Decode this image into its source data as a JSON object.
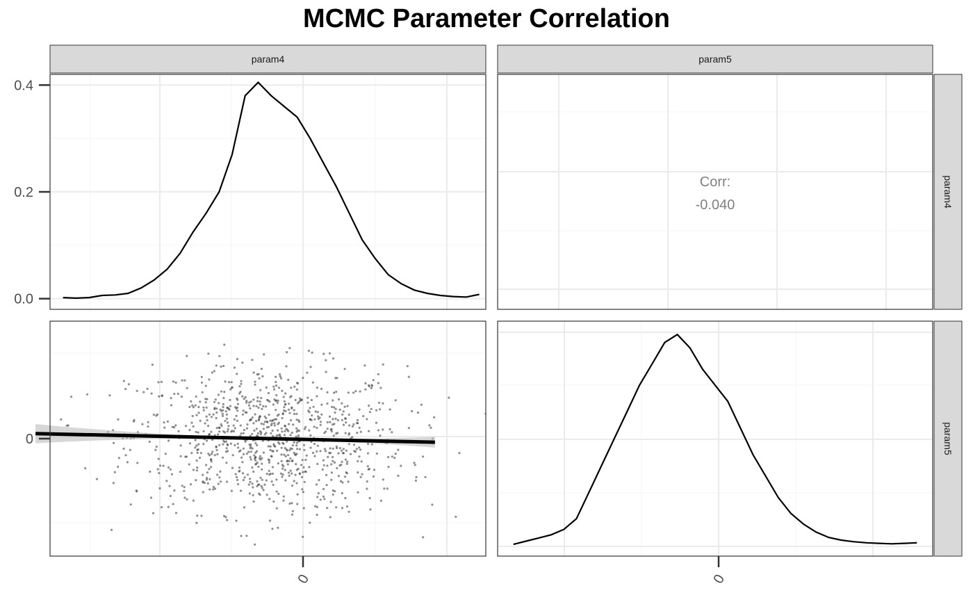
{
  "title": "MCMC Parameter Correlation",
  "chart_data": {
    "type": "pairs",
    "title": "MCMC Parameter Correlation",
    "variables": [
      "param4",
      "param5"
    ],
    "grid": true,
    "colors": {
      "strip": "#d9d9d9",
      "line": "#000000",
      "points": "#333333",
      "ribbon": "#bdbdbd",
      "corr_text": "#7f7f7f"
    },
    "panels": [
      {
        "position": "param4-diagonal",
        "type": "line",
        "name": "density param4",
        "ylim": [
          -0.02,
          0.42
        ],
        "xlim": [
          -3.0,
          3.0
        ],
        "yticks": [
          0.0,
          0.2,
          0.4
        ],
        "ytick_labels": [
          "0.0",
          "0.2",
          "0.4"
        ],
        "x": [
          -3.2,
          -3.0,
          -2.8,
          -2.6,
          -2.4,
          -2.2,
          -2.0,
          -1.8,
          -1.6,
          -1.4,
          -1.2,
          -1.0,
          -0.8,
          -0.6,
          -0.4,
          -0.2,
          0.0,
          0.2,
          0.4,
          0.6,
          0.8,
          1.0,
          1.2,
          1.4,
          1.6,
          1.8,
          2.0,
          2.2,
          2.4,
          2.6,
          2.8,
          3.0,
          3.2
        ],
        "y": [
          0.002,
          0.001,
          0.002,
          0.006,
          0.007,
          0.01,
          0.02,
          0.035,
          0.055,
          0.085,
          0.125,
          0.16,
          0.2,
          0.27,
          0.38,
          0.405,
          0.38,
          0.36,
          0.34,
          0.3,
          0.255,
          0.21,
          0.16,
          0.11,
          0.075,
          0.045,
          0.028,
          0.016,
          0.01,
          0.006,
          0.004,
          0.003,
          0.008
        ]
      },
      {
        "position": "param4-param5-upper",
        "type": "text",
        "label": "Corr:",
        "value": "-0.040"
      },
      {
        "position": "param5-param4-lower",
        "type": "scatter",
        "xlim": [
          -3.0,
          3.0
        ],
        "ylim": [
          -3.0,
          3.0
        ],
        "yticks": [
          0
        ],
        "ytick_labels": [
          "0"
        ],
        "xticks": [
          0
        ],
        "xtick_labels": [
          "0"
        ],
        "n_points": 1000,
        "fit_line": {
          "intercept": 0.0,
          "slope": -0.04,
          "x_range": [
            -3.2,
            2.3
          ]
        }
      },
      {
        "position": "param5-diagonal",
        "type": "line",
        "name": "density param5",
        "ylim": [
          -0.02,
          0.42
        ],
        "xlim": [
          -3.0,
          3.0
        ],
        "xticks": [
          0
        ],
        "xtick_labels": [
          "0"
        ],
        "x": [
          -3.2,
          -3.0,
          -2.8,
          -2.6,
          -2.4,
          -2.2,
          -2.0,
          -1.8,
          -1.6,
          -1.4,
          -1.2,
          -1.0,
          -0.8,
          -0.6,
          -0.4,
          -0.2,
          0.0,
          0.2,
          0.4,
          0.6,
          0.8,
          1.0,
          1.2,
          1.4,
          1.6,
          1.8,
          2.0,
          2.2,
          2.4,
          2.6,
          2.8,
          3.0,
          3.2
        ],
        "y": [
          0.002,
          0.008,
          0.014,
          0.02,
          0.03,
          0.05,
          0.1,
          0.15,
          0.2,
          0.25,
          0.3,
          0.34,
          0.38,
          0.395,
          0.37,
          0.33,
          0.3,
          0.27,
          0.22,
          0.17,
          0.13,
          0.09,
          0.06,
          0.04,
          0.025,
          0.015,
          0.01,
          0.007,
          0.005,
          0.004,
          0.003,
          0.004,
          0.005
        ]
      }
    ]
  }
}
